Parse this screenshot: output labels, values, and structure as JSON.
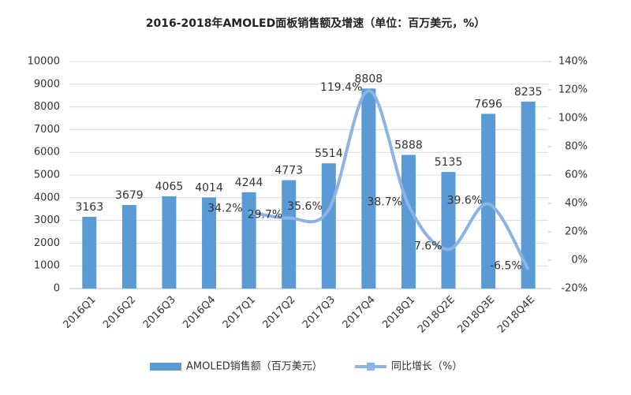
{
  "chart_data": {
    "type": "bar",
    "title": "2016-2018年AMOLED面板销售额及增速（单位：百万美元，%）",
    "categories": [
      "2016Q1",
      "2016Q2",
      "2016Q3",
      "2016Q4",
      "2017Q1",
      "2017Q2",
      "2017Q3",
      "2017Q4",
      "2018Q1",
      "2018Q2E",
      "2018Q3E",
      "2018Q4E"
    ],
    "series": [
      {
        "name": "AMOLED销售额（百万美元）",
        "type": "bar",
        "color": "#5b9bd5",
        "values": [
          3163,
          3679,
          4065,
          4014,
          4244,
          4773,
          5514,
          8808,
          5888,
          5135,
          7696,
          8235
        ]
      },
      {
        "name": "同比增长（%）",
        "type": "line",
        "color": "#8db3e6",
        "axis": "y2",
        "values": [
          null,
          null,
          null,
          null,
          34.2,
          29.7,
          35.6,
          119.4,
          38.7,
          7.6,
          39.6,
          -6.5
        ],
        "value_labels": [
          null,
          null,
          null,
          null,
          "34.2%",
          "29.7%",
          "35.6%",
          "119.4%",
          "38.7%",
          "7.6%",
          "39.6%",
          "-6.5%"
        ]
      }
    ],
    "ylim": [
      0,
      10000
    ],
    "yticks": [
      0,
      1000,
      2000,
      3000,
      4000,
      5000,
      6000,
      7000,
      8000,
      9000,
      10000
    ],
    "y2lim": [
      -20,
      140
    ],
    "y2ticks": [
      {
        "value": -20,
        "label": "-20%"
      },
      {
        "value": 0,
        "label": "0%"
      },
      {
        "value": 20,
        "label": "20%"
      },
      {
        "value": 40,
        "label": "40%"
      },
      {
        "value": 60,
        "label": "60%"
      },
      {
        "value": 80,
        "label": "80%"
      },
      {
        "value": 100,
        "label": "100%"
      },
      {
        "value": 120,
        "label": "120%"
      },
      {
        "value": 140,
        "label": "140%"
      }
    ],
    "grid": true
  }
}
